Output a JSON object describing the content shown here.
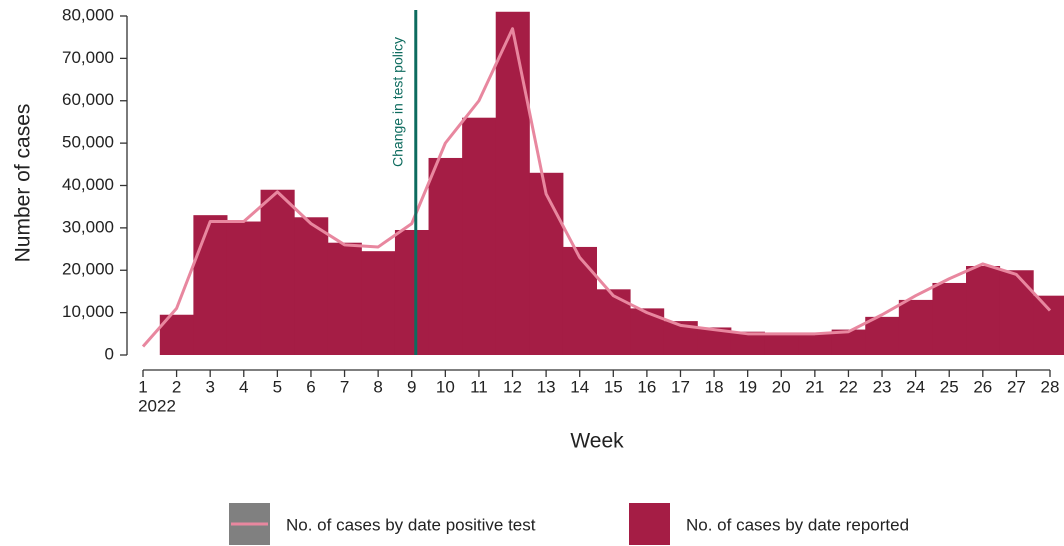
{
  "chart_data": {
    "type": "bar",
    "y_axis_label": "Number of cases",
    "x_axis_label": "Week",
    "x": [
      1,
      2,
      3,
      4,
      5,
      6,
      7,
      8,
      9,
      10,
      11,
      12,
      13,
      14,
      15,
      16,
      17,
      18,
      19,
      20,
      21,
      22,
      23,
      24,
      25,
      26,
      27,
      28
    ],
    "x_sublabel": "2022",
    "series": [
      {
        "name": "No. of cases by date positive test",
        "type": "line",
        "color": "#e8879f",
        "legend_box": "#808080",
        "values": [
          2000,
          11000,
          31500,
          31500,
          38500,
          31000,
          26000,
          25500,
          31000,
          50000,
          60000,
          77000,
          38000,
          23000,
          14000,
          10000,
          7000,
          6000,
          5000,
          5000,
          5000,
          5500,
          9500,
          14000,
          18000,
          21500,
          19000,
          10500
        ]
      },
      {
        "name": "No. of cases by date reported",
        "type": "bar",
        "color": "#a51d45",
        "values": [
          null,
          9500,
          33000,
          31500,
          39000,
          32500,
          26500,
          24500,
          29500,
          46500,
          56000,
          81000,
          43000,
          25500,
          15500,
          11000,
          8000,
          6500,
          5500,
          5000,
          5000,
          6000,
          9000,
          13000,
          17000,
          21000,
          20000,
          14000
        ]
      }
    ],
    "xlim": [
      1,
      28
    ],
    "xticks": [
      1,
      2,
      3,
      4,
      5,
      6,
      7,
      8,
      9,
      10,
      11,
      12,
      13,
      14,
      15,
      16,
      17,
      18,
      19,
      20,
      21,
      22,
      23,
      24,
      25,
      26,
      27,
      28
    ],
    "ylim": [
      0,
      80000
    ],
    "yticks": [
      0,
      {
        "value": 10000,
        "label": "10,000"
      },
      {
        "value": 20000,
        "label": "20,000"
      },
      {
        "value": 30000,
        "label": "30,000"
      },
      {
        "value": 40000,
        "label": "40,000"
      },
      {
        "value": 50000,
        "label": "50,000"
      },
      {
        "value": 60000,
        "label": "60,000"
      },
      {
        "value": 70000,
        "label": "70,000"
      },
      {
        "value": 80000,
        "label": "80,000"
      }
    ],
    "annotation": {
      "text": "Change in test policy",
      "x": 9.12,
      "color": "#0d6b5e"
    }
  }
}
